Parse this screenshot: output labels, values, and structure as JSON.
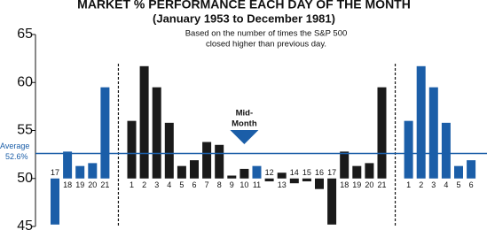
{
  "chart_data": {
    "type": "bar",
    "title": "MARKET % PERFORMANCE EACH DAY OF THE MONTH",
    "subtitle": "(January 1953 to December 1981)",
    "note": [
      "Based on the number of times the S&P 500",
      "closed higher than previous day."
    ],
    "categories": [
      "17",
      "18",
      "19",
      "20",
      "21",
      "1",
      "2",
      "3",
      "4",
      "5",
      "6",
      "7",
      "8",
      "9",
      "10",
      "11",
      "12",
      "13",
      "14",
      "15",
      "16",
      "17",
      "18",
      "19",
      "20",
      "21",
      "1",
      "2",
      "3",
      "4",
      "5",
      "6"
    ],
    "values": [
      45.2,
      52.8,
      51.3,
      51.6,
      59.5,
      56.0,
      61.7,
      59.5,
      55.8,
      51.3,
      51.9,
      53.8,
      53.5,
      50.3,
      51.0,
      51.3,
      49.7,
      50.6,
      49.5,
      49.7,
      48.9,
      45.2,
      52.8,
      51.3,
      51.6,
      59.5,
      56.0,
      61.7,
      59.5,
      55.8,
      51.3,
      51.9
    ],
    "colors": [
      "#1b5ea8",
      "#1b5ea8",
      "#1b5ea8",
      "#1b5ea8",
      "#1b5ea8",
      "#1a1a1a",
      "#1a1a1a",
      "#1a1a1a",
      "#1a1a1a",
      "#1a1a1a",
      "#1a1a1a",
      "#1a1a1a",
      "#1a1a1a",
      "#1a1a1a",
      "#1a1a1a",
      "#1b5ea8",
      "#1a1a1a",
      "#1a1a1a",
      "#1a1a1a",
      "#1a1a1a",
      "#1a1a1a",
      "#1a1a1a",
      "#1a1a1a",
      "#1a1a1a",
      "#1a1a1a",
      "#1a1a1a",
      "#1b5ea8",
      "#1b5ea8",
      "#1b5ea8",
      "#1b5ea8",
      "#1b5ea8",
      "#1b5ea8"
    ],
    "base": 50,
    "ylim": [
      45,
      65
    ],
    "yticks": [
      45,
      50,
      55,
      60,
      65
    ],
    "average": {
      "value": 52.6,
      "title": "Average",
      "label": "52.6%",
      "color": "#1b5ea8"
    },
    "annotation": [
      "Mid-",
      "Month"
    ]
  }
}
